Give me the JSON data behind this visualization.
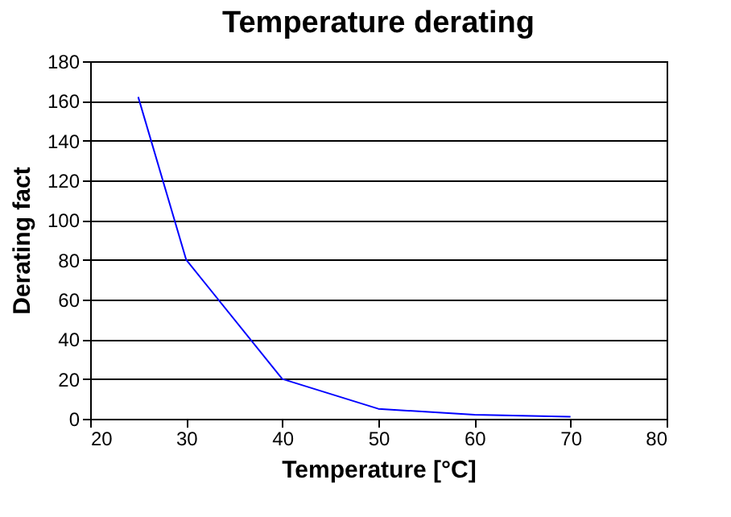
{
  "chart_data": {
    "type": "line",
    "title": "Temperature derating",
    "xlabel": "Temperature [°C]",
    "ylabel": "Derating fact",
    "x": [
      25,
      30,
      40,
      50,
      60,
      70
    ],
    "series": [
      {
        "color": "#0000ff",
        "values": [
          162,
          80,
          20,
          5,
          2,
          1
        ]
      }
    ],
    "xlim": [
      20,
      80
    ],
    "xticks": [
      20,
      30,
      40,
      50,
      60,
      70,
      80
    ],
    "ylim": [
      0,
      180
    ],
    "yticks": [
      0,
      20,
      40,
      60,
      80,
      100,
      120,
      140,
      160,
      180
    ],
    "grid": "y",
    "marker": "none",
    "line_style": "solid"
  }
}
